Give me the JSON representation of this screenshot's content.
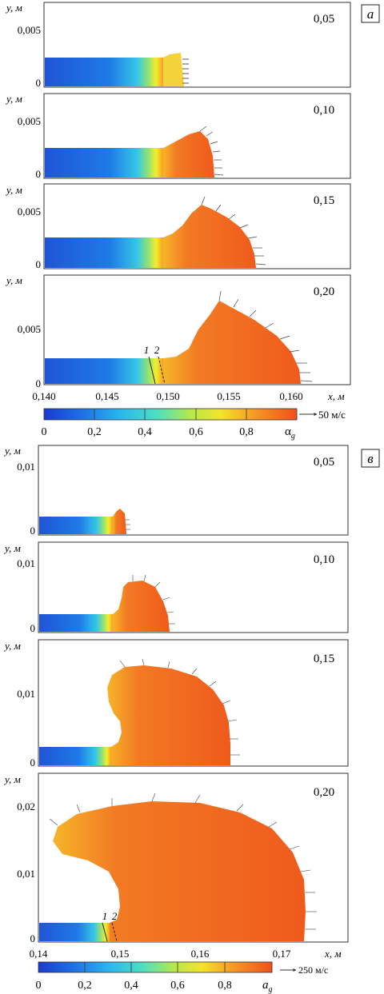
{
  "figure": {
    "groups": [
      {
        "label": "a",
        "y_axis_label": "y, м",
        "x_axis_label": "x, м",
        "x_ticks": [
          "0,140",
          "0,145",
          "0,150",
          "0,155",
          "0,160"
        ],
        "panels": [
          {
            "time": "0,05",
            "y_ticks": [
              "0",
              "0,005"
            ]
          },
          {
            "time": "0,10",
            "y_ticks": [
              "0",
              "0,005"
            ]
          },
          {
            "time": "0,15",
            "y_ticks": [
              "0",
              "0,005"
            ]
          },
          {
            "time": "0,20",
            "y_ticks": [
              "0",
              "0,005"
            ],
            "marks": [
              "1",
              "2"
            ]
          }
        ],
        "colorbar": {
          "ticks": [
            "0",
            "0,2",
            "0,4",
            "0,6",
            "0,8"
          ],
          "symbol": "α",
          "symbol_sub": "g",
          "vector_scale": "50 м/с"
        }
      },
      {
        "label": "в",
        "y_axis_label": "y, м",
        "x_axis_label": "x, м",
        "x_ticks": [
          "0,14",
          "0,15",
          "0,16",
          "0,17"
        ],
        "panels": [
          {
            "time": "0,05",
            "y_ticks": [
              "0",
              "0,01"
            ]
          },
          {
            "time": "0,10",
            "y_ticks": [
              "0",
              "0,01"
            ]
          },
          {
            "time": "0,15",
            "y_ticks": [
              "0",
              "0,01"
            ]
          },
          {
            "time": "0,20",
            "y_ticks": [
              "0",
              "0,01",
              "0,02"
            ],
            "marks": [
              "1",
              "2"
            ]
          }
        ],
        "colorbar": {
          "ticks": [
            "0",
            "0,2",
            "0,4",
            "0,6",
            "0,8"
          ],
          "symbol": "a",
          "symbol_sub": "g",
          "vector_scale": "250 м/с"
        }
      }
    ],
    "colors": {
      "low": "#1e56d8",
      "mid_cyan": "#33c8e8",
      "mid_green": "#8fe06a",
      "mid_yellow": "#f2ef2a",
      "high": "#f05a14",
      "outline": "#222222"
    }
  }
}
